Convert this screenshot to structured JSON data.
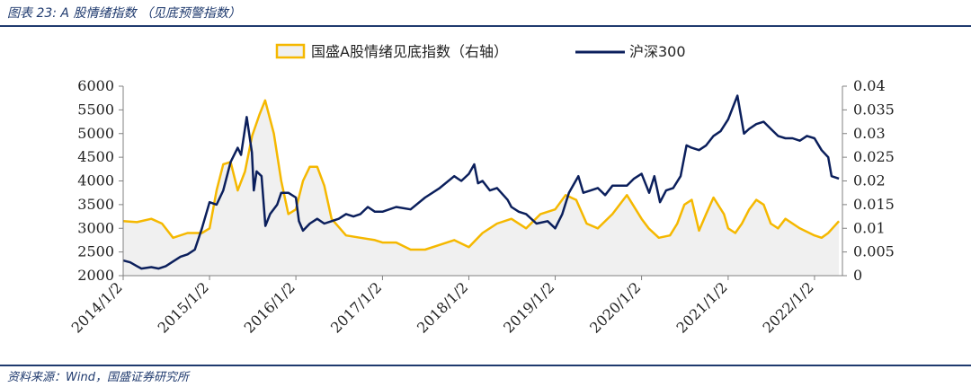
{
  "figure": {
    "title": "图表 23:  A 股情绪指数 （见底预警指数）",
    "source": "资料来源：Wind，国盛证券研究所"
  },
  "colors": {
    "hs300": "#0B1F5C",
    "sentiment": "#F5B800",
    "sentiment_fill": "#F0F0F0",
    "rule": "#1F3A6E"
  },
  "chart_data": {
    "type": "line",
    "legend_position": "top-center",
    "grid": false,
    "x_ticks": [
      "2014/1/2",
      "2015/1/2",
      "2016/1/2",
      "2017/1/2",
      "2018/1/2",
      "2019/1/2",
      "2020/1/2",
      "2021/1/2",
      "2022/1/2"
    ],
    "x_range": [
      "2014-01-02",
      "2022-04-30"
    ],
    "y_left": {
      "range": [
        2000,
        6000
      ],
      "ticks": [
        "2000",
        "2500",
        "3000",
        "3500",
        "4000",
        "4500",
        "5000",
        "5500",
        "6000"
      ]
    },
    "y_right": {
      "range": [
        0,
        0.04
      ],
      "ticks": [
        "0",
        "0.005",
        "0.01",
        "0.015",
        "0.02",
        "0.025",
        "0.03",
        "0.035",
        "0.04"
      ]
    },
    "series": [
      {
        "name": "国盛A股情绪见底指数（右轴）",
        "axis": "right",
        "style": "area",
        "points": [
          [
            "2014-01-02",
            0.0115
          ],
          [
            "2014-03-01",
            0.0113
          ],
          [
            "2014-05-01",
            0.012
          ],
          [
            "2014-06-15",
            0.011
          ],
          [
            "2014-08-01",
            0.008
          ],
          [
            "2014-10-01",
            0.009
          ],
          [
            "2014-12-01",
            0.009
          ],
          [
            "2015-01-02",
            0.01
          ],
          [
            "2015-02-01",
            0.018
          ],
          [
            "2015-03-01",
            0.0235
          ],
          [
            "2015-04-01",
            0.024
          ],
          [
            "2015-05-01",
            0.018
          ],
          [
            "2015-06-01",
            0.022
          ],
          [
            "2015-07-01",
            0.0295
          ],
          [
            "2015-08-01",
            0.034
          ],
          [
            "2015-08-25",
            0.037
          ],
          [
            "2015-10-01",
            0.03
          ],
          [
            "2015-11-01",
            0.02
          ],
          [
            "2015-12-01",
            0.013
          ],
          [
            "2016-01-02",
            0.014
          ],
          [
            "2016-02-01",
            0.02
          ],
          [
            "2016-03-01",
            0.023
          ],
          [
            "2016-04-01",
            0.023
          ],
          [
            "2016-05-01",
            0.019
          ],
          [
            "2016-06-01",
            0.012
          ],
          [
            "2016-08-01",
            0.0085
          ],
          [
            "2016-10-01",
            0.008
          ],
          [
            "2016-12-01",
            0.0075
          ],
          [
            "2017-01-02",
            0.007
          ],
          [
            "2017-03-01",
            0.007
          ],
          [
            "2017-05-01",
            0.0055
          ],
          [
            "2017-07-01",
            0.0055
          ],
          [
            "2017-09-01",
            0.0065
          ],
          [
            "2017-11-01",
            0.0075
          ],
          [
            "2018-01-02",
            0.006
          ],
          [
            "2018-03-01",
            0.009
          ],
          [
            "2018-05-01",
            0.011
          ],
          [
            "2018-07-01",
            0.012
          ],
          [
            "2018-09-01",
            0.01
          ],
          [
            "2018-11-01",
            0.013
          ],
          [
            "2019-01-02",
            0.014
          ],
          [
            "2019-02-15",
            0.017
          ],
          [
            "2019-04-01",
            0.016
          ],
          [
            "2019-05-15",
            0.011
          ],
          [
            "2019-07-01",
            0.01
          ],
          [
            "2019-09-01",
            0.013
          ],
          [
            "2019-11-01",
            0.017
          ],
          [
            "2020-01-02",
            0.012
          ],
          [
            "2020-02-01",
            0.01
          ],
          [
            "2020-03-15",
            0.008
          ],
          [
            "2020-05-01",
            0.0085
          ],
          [
            "2020-06-01",
            0.011
          ],
          [
            "2020-07-01",
            0.015
          ],
          [
            "2020-08-01",
            0.016
          ],
          [
            "2020-09-01",
            0.0095
          ],
          [
            "2020-10-01",
            0.013
          ],
          [
            "2020-11-01",
            0.0165
          ],
          [
            "2020-12-15",
            0.013
          ],
          [
            "2021-01-02",
            0.01
          ],
          [
            "2021-02-01",
            0.009
          ],
          [
            "2021-03-01",
            0.011
          ],
          [
            "2021-04-01",
            0.014
          ],
          [
            "2021-05-01",
            0.016
          ],
          [
            "2021-06-01",
            0.015
          ],
          [
            "2021-07-01",
            0.011
          ],
          [
            "2021-08-01",
            0.01
          ],
          [
            "2021-09-01",
            0.012
          ],
          [
            "2021-11-01",
            0.01
          ],
          [
            "2022-01-02",
            0.0085
          ],
          [
            "2022-02-01",
            0.008
          ],
          [
            "2022-03-01",
            0.009
          ],
          [
            "2022-04-15",
            0.0115
          ]
        ]
      },
      {
        "name": "沪深300",
        "axis": "left",
        "style": "line",
        "points": [
          [
            "2014-01-02",
            2320
          ],
          [
            "2014-02-01",
            2280
          ],
          [
            "2014-03-01",
            2200
          ],
          [
            "2014-03-20",
            2150
          ],
          [
            "2014-05-01",
            2180
          ],
          [
            "2014-06-01",
            2150
          ],
          [
            "2014-07-01",
            2200
          ],
          [
            "2014-08-01",
            2300
          ],
          [
            "2014-09-01",
            2400
          ],
          [
            "2014-10-01",
            2450
          ],
          [
            "2014-11-01",
            2550
          ],
          [
            "2014-12-01",
            3000
          ],
          [
            "2015-01-02",
            3550
          ],
          [
            "2015-02-01",
            3500
          ],
          [
            "2015-03-01",
            3800
          ],
          [
            "2015-04-01",
            4400
          ],
          [
            "2015-05-01",
            4700
          ],
          [
            "2015-05-15",
            4550
          ],
          [
            "2015-06-08",
            5350
          ],
          [
            "2015-06-30",
            4600
          ],
          [
            "2015-07-08",
            3800
          ],
          [
            "2015-07-20",
            4200
          ],
          [
            "2015-08-10",
            4100
          ],
          [
            "2015-08-26",
            3050
          ],
          [
            "2015-09-15",
            3300
          ],
          [
            "2015-10-15",
            3500
          ],
          [
            "2015-11-01",
            3750
          ],
          [
            "2015-12-01",
            3750
          ],
          [
            "2016-01-02",
            3650
          ],
          [
            "2016-01-15",
            3150
          ],
          [
            "2016-02-01",
            2950
          ],
          [
            "2016-03-01",
            3100
          ],
          [
            "2016-04-01",
            3200
          ],
          [
            "2016-05-01",
            3100
          ],
          [
            "2016-06-01",
            3150
          ],
          [
            "2016-07-01",
            3200
          ],
          [
            "2016-08-01",
            3300
          ],
          [
            "2016-09-01",
            3250
          ],
          [
            "2016-10-01",
            3300
          ],
          [
            "2016-11-01",
            3450
          ],
          [
            "2016-12-01",
            3350
          ],
          [
            "2017-01-02",
            3350
          ],
          [
            "2017-03-01",
            3450
          ],
          [
            "2017-05-01",
            3400
          ],
          [
            "2017-07-01",
            3650
          ],
          [
            "2017-09-01",
            3850
          ],
          [
            "2017-11-01",
            4100
          ],
          [
            "2017-12-01",
            4000
          ],
          [
            "2018-01-02",
            4150
          ],
          [
            "2018-01-25",
            4350
          ],
          [
            "2018-02-10",
            3950
          ],
          [
            "2018-03-01",
            4000
          ],
          [
            "2018-04-01",
            3800
          ],
          [
            "2018-05-01",
            3850
          ],
          [
            "2018-06-15",
            3600
          ],
          [
            "2018-07-01",
            3450
          ],
          [
            "2018-08-01",
            3350
          ],
          [
            "2018-09-01",
            3300
          ],
          [
            "2018-10-15",
            3100
          ],
          [
            "2018-12-01",
            3150
          ],
          [
            "2019-01-02",
            3000
          ],
          [
            "2019-02-01",
            3300
          ],
          [
            "2019-03-01",
            3750
          ],
          [
            "2019-04-10",
            4100
          ],
          [
            "2019-05-01",
            3750
          ],
          [
            "2019-06-01",
            3800
          ],
          [
            "2019-07-01",
            3850
          ],
          [
            "2019-08-01",
            3700
          ],
          [
            "2019-09-01",
            3900
          ],
          [
            "2019-10-01",
            3900
          ],
          [
            "2019-11-01",
            3900
          ],
          [
            "2019-12-01",
            4050
          ],
          [
            "2020-01-02",
            4150
          ],
          [
            "2020-02-03",
            3750
          ],
          [
            "2020-02-25",
            4100
          ],
          [
            "2020-03-20",
            3550
          ],
          [
            "2020-04-15",
            3800
          ],
          [
            "2020-05-15",
            3850
          ],
          [
            "2020-06-15",
            4100
          ],
          [
            "2020-07-10",
            4750
          ],
          [
            "2020-08-01",
            4700
          ],
          [
            "2020-09-01",
            4650
          ],
          [
            "2020-10-01",
            4750
          ],
          [
            "2020-11-01",
            4950
          ],
          [
            "2020-12-01",
            5050
          ],
          [
            "2021-01-02",
            5300
          ],
          [
            "2021-02-10",
            5800
          ],
          [
            "2021-03-10",
            5000
          ],
          [
            "2021-04-01",
            5100
          ],
          [
            "2021-05-01",
            5200
          ],
          [
            "2021-06-01",
            5250
          ],
          [
            "2021-07-01",
            5100
          ],
          [
            "2021-08-01",
            4950
          ],
          [
            "2021-09-01",
            4900
          ],
          [
            "2021-10-01",
            4900
          ],
          [
            "2021-11-01",
            4850
          ],
          [
            "2021-12-01",
            4950
          ],
          [
            "2022-01-02",
            4900
          ],
          [
            "2022-02-01",
            4650
          ],
          [
            "2022-03-01",
            4500
          ],
          [
            "2022-03-15",
            4100
          ],
          [
            "2022-04-15",
            4050
          ]
        ]
      }
    ]
  }
}
